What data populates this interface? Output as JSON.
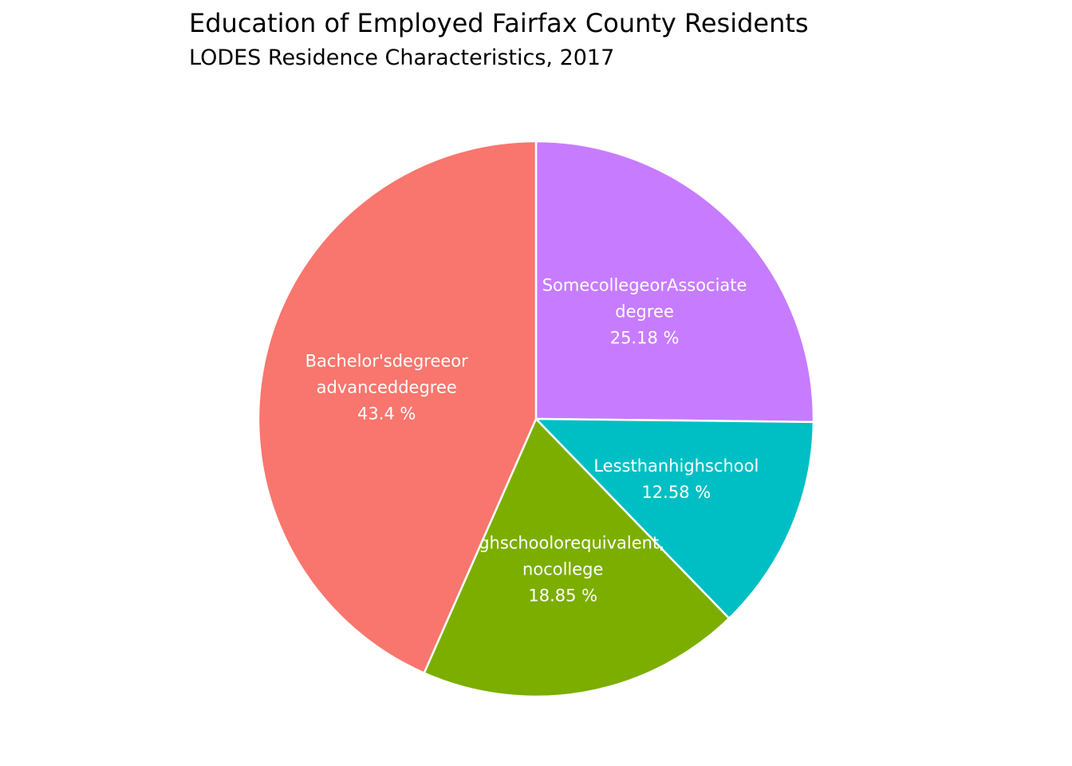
{
  "chart_data": {
    "type": "pie",
    "title": "Education of Employed Fairfax County Residents",
    "subtitle": "LODES Residence Characteristics, 2017",
    "slices": [
      {
        "key": "some-college",
        "label_lines": [
          "SomecollegeorAssociate",
          "degree"
        ],
        "pct_text": "25.18 %",
        "value": 25.18,
        "color": "#C77CFF"
      },
      {
        "key": "less-than-hs",
        "label_lines": [
          "Lessthanhighschool"
        ],
        "pct_text": "12.58 %",
        "value": 12.58,
        "color": "#00BFC4"
      },
      {
        "key": "high-school",
        "label_lines": [
          "Highschoolorequivalent,",
          "nocollege"
        ],
        "pct_text": "18.85 %",
        "value": 18.85,
        "color": "#7CAE00"
      },
      {
        "key": "bachelors",
        "label_lines": [
          "Bachelor'sdegreeor",
          "advanceddegree"
        ],
        "pct_text": "43.4 %",
        "value": 43.4,
        "color": "#F8766D"
      }
    ]
  }
}
